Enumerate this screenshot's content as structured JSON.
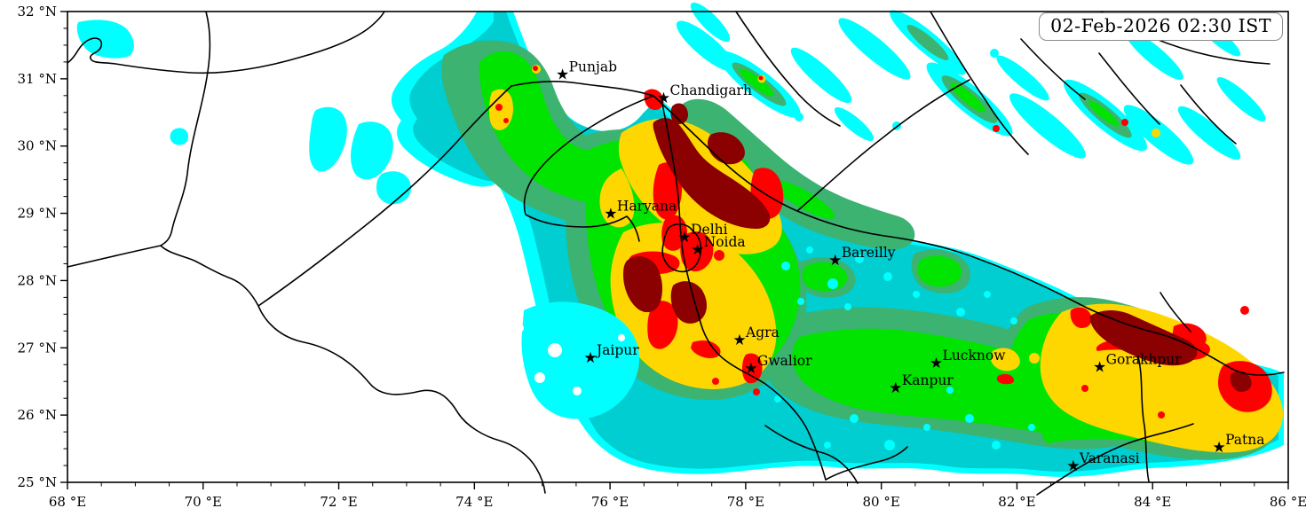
{
  "timestamp": "02-Feb-2026 02:30 IST",
  "map": {
    "projection": {
      "lon_min": 68,
      "lon_max": 86,
      "lat_min": 25,
      "lat_max": 32
    },
    "x_axis": {
      "unit": "°E",
      "major_ticks": [
        {
          "lon": 68,
          "label": "68 °E"
        },
        {
          "lon": 70,
          "label": "70 °E"
        },
        {
          "lon": 72,
          "label": "72 °E"
        },
        {
          "lon": 74,
          "label": "74 °E"
        },
        {
          "lon": 76,
          "label": "76 °E"
        },
        {
          "lon": 78,
          "label": "78 °E"
        },
        {
          "lon": 80,
          "label": "80 °E"
        },
        {
          "lon": 82,
          "label": "82 °E"
        },
        {
          "lon": 84,
          "label": "84 °E"
        },
        {
          "lon": 86,
          "label": "86 °E"
        }
      ],
      "minor_tick_step": 0.5
    },
    "y_axis": {
      "unit": "°N",
      "major_ticks": [
        {
          "lat": 32,
          "label": "32 °N"
        },
        {
          "lat": 31,
          "label": "31 °N"
        },
        {
          "lat": 30,
          "label": "30 °N"
        },
        {
          "lat": 29,
          "label": "29 °N"
        },
        {
          "lat": 28,
          "label": "28 °N"
        },
        {
          "lat": 27,
          "label": "27 °N"
        },
        {
          "lat": 26,
          "label": "26 °N"
        },
        {
          "lat": 25,
          "label": "25 °N"
        }
      ],
      "minor_tick_step": 0.25
    }
  },
  "cities": [
    {
      "name": "Punjab",
      "lon": 75.3,
      "lat": 31.07
    },
    {
      "name": "Chandigarh",
      "lon": 76.79,
      "lat": 30.72
    },
    {
      "name": "Haryana",
      "lon": 76.01,
      "lat": 29.0
    },
    {
      "name": "Delhi",
      "lon": 77.1,
      "lat": 28.65
    },
    {
      "name": "Noida",
      "lon": 77.29,
      "lat": 28.47
    },
    {
      "name": "Bareilly",
      "lon": 79.32,
      "lat": 28.31
    },
    {
      "name": "Jaipur",
      "lon": 75.71,
      "lat": 26.86
    },
    {
      "name": "Agra",
      "lon": 77.91,
      "lat": 27.12
    },
    {
      "name": "Gwalior",
      "lon": 78.08,
      "lat": 26.7
    },
    {
      "name": "Lucknow",
      "lon": 80.81,
      "lat": 26.78
    },
    {
      "name": "Kanpur",
      "lon": 80.21,
      "lat": 26.41
    },
    {
      "name": "Gorakhpur",
      "lon": 83.22,
      "lat": 26.72
    },
    {
      "name": "Varanasi",
      "lon": 82.83,
      "lat": 25.25
    },
    {
      "name": "Patna",
      "lon": 84.98,
      "lat": 25.53
    }
  ],
  "palette": {
    "none": "#FFFFFF",
    "level1": "#00FFFF",
    "level2": "#00CED1",
    "level3": "#3CB371",
    "level4": "#00E400",
    "level5": "#FFD700",
    "level6": "#FF0000",
    "level7": "#8B0000"
  }
}
